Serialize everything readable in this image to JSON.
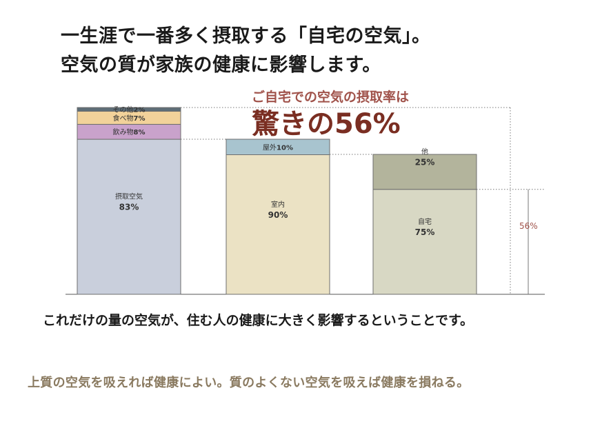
{
  "headline": {
    "line1": "一生涯で一番多く摂取する「自宅の空気」。",
    "line2": "空気の質が家族の健康に影響します。"
  },
  "callout": {
    "subtitle": "ご自宅での空気の摂取率は",
    "main": "驚きの56%",
    "marker_label": "56%"
  },
  "footer": {
    "line1": "これだけの量の空気が、住む人の健康に大きく影響するということです。",
    "line2": "上質の空気を吸えれば健康によい。質のよくない空気を吸えば健康を損ねる。"
  },
  "colors": {
    "callout_red": "#7a2e22",
    "subtitle_red": "#a0524a",
    "marker_red": "#a0524a",
    "footer_brown": "#8a7a60"
  },
  "chart_data": [
    {
      "type": "bar",
      "stacked": true,
      "ylim": [
        0,
        100
      ],
      "segments": [
        {
          "name": "摂取空気",
          "value": 83,
          "label": "83%",
          "color": "#c9cfdc"
        },
        {
          "name": "飲み物",
          "value": 8,
          "label": "8%",
          "color": "#c9a2cb"
        },
        {
          "name": "食べ物",
          "value": 7,
          "label": "7%",
          "color": "#f2d29a"
        },
        {
          "name": "その他",
          "value": 2,
          "label": "2%",
          "color": "#5e6e78"
        }
      ]
    },
    {
      "type": "bar",
      "stacked": true,
      "ylim": [
        0,
        100
      ],
      "segments": [
        {
          "name": "室内",
          "value": 90,
          "label": "90%",
          "color": "#ebe2c4"
        },
        {
          "name": "屋外",
          "value": 10,
          "label": "10%",
          "color": "#a8c4cf"
        }
      ]
    },
    {
      "type": "bar",
      "stacked": true,
      "ylim": [
        0,
        100
      ],
      "segments": [
        {
          "name": "自宅",
          "value": 75,
          "label": "75%",
          "color": "#d8d8c4"
        },
        {
          "name": "他",
          "value": 25,
          "label": "25%",
          "color": "#b3b49c"
        }
      ]
    }
  ]
}
